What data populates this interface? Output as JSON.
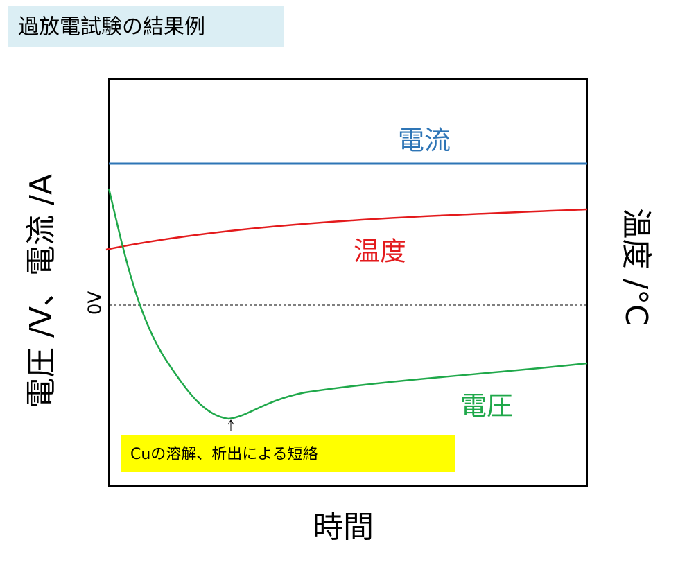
{
  "header": {
    "title": "過放電試験の結果例"
  },
  "labels": {
    "current": "電流",
    "temperature": "温度",
    "voltage": "電圧",
    "zero": "0V",
    "annotation": "Cuの溶解、析出による短絡",
    "left_axis": "電圧 /V、電流 /A",
    "right_axis": "温度 /°C",
    "x_axis": "時間"
  }
}
